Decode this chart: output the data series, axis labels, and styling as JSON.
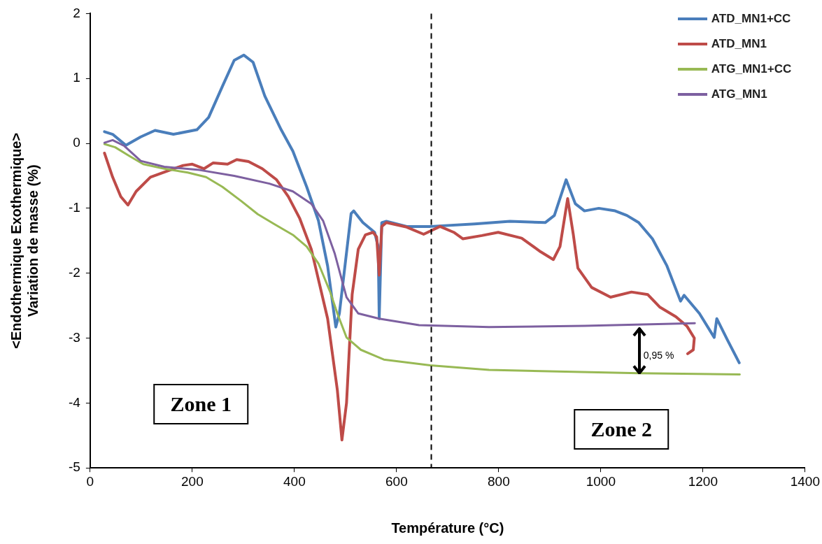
{
  "chart_data": {
    "type": "line",
    "xlabel": "Température (°C)",
    "ylabel": "<Endothermique Exothermique>\nVariation de masse (%)",
    "xlim": [
      0,
      1400
    ],
    "xticks": [
      0,
      200,
      400,
      600,
      800,
      1000,
      1200,
      1400
    ],
    "ylim": [
      -5,
      2
    ],
    "yticks": [
      -5,
      -4,
      -3,
      -2,
      -1,
      0,
      1,
      2
    ],
    "grid": false,
    "legend": "top right",
    "marker": "none",
    "line_style": "solid",
    "series": [
      {
        "name": "ATD_MN1+CC",
        "color": "#4a7ebb",
        "x": [
          28,
          44,
          70,
          99,
          127,
          163,
          209,
          232,
          259,
          282,
          301,
          319,
          342,
          374,
          397,
          424,
          447,
          465,
          481,
          488,
          511,
          516,
          534,
          557,
          564,
          566,
          571,
          580,
          620,
          666,
          753,
          822,
          891,
          909,
          932,
          950,
          968,
          996,
          1028,
          1051,
          1074,
          1101,
          1129,
          1156,
          1163,
          1193,
          1222,
          1227,
          1248,
          1271
        ],
        "values": [
          0.18,
          0.14,
          -0.03,
          0.1,
          0.2,
          0.14,
          0.21,
          0.4,
          0.88,
          1.28,
          1.36,
          1.25,
          0.73,
          0.21,
          -0.12,
          -0.67,
          -1.19,
          -1.89,
          -2.83,
          -2.62,
          -1.08,
          -1.04,
          -1.22,
          -1.37,
          -1.59,
          -2.7,
          -1.22,
          -1.2,
          -1.28,
          -1.28,
          -1.24,
          -1.2,
          -1.22,
          -1.11,
          -0.56,
          -0.93,
          -1.04,
          -1,
          -1.04,
          -1.11,
          -1.22,
          -1.47,
          -1.88,
          -2.43,
          -2.34,
          -2.62,
          -2.99,
          -2.7,
          -3.03,
          -3.38
        ]
      },
      {
        "name": "ATD_MN1",
        "color": "#be4b48",
        "x": [
          28,
          44,
          60,
          74,
          90,
          118,
          150,
          182,
          200,
          223,
          241,
          269,
          287,
          310,
          337,
          365,
          388,
          410,
          433,
          465,
          484,
          493,
          502,
          513,
          525,
          539,
          554,
          561,
          566,
          571,
          580,
          620,
          653,
          685,
          712,
          730,
          767,
          799,
          845,
          882,
          907,
          920,
          935,
          946,
          955,
          982,
          1019,
          1060,
          1092,
          1115,
          1147,
          1169,
          1183,
          1181,
          1170
        ],
        "values": [
          -0.15,
          -0.52,
          -0.82,
          -0.95,
          -0.74,
          -0.52,
          -0.43,
          -0.34,
          -0.32,
          -0.39,
          -0.3,
          -0.32,
          -0.25,
          -0.28,
          -0.39,
          -0.56,
          -0.82,
          -1.15,
          -1.63,
          -2.7,
          -3.8,
          -4.57,
          -4,
          -2.33,
          -1.63,
          -1.41,
          -1.37,
          -1.44,
          -2.03,
          -1.28,
          -1.22,
          -1.29,
          -1.4,
          -1.28,
          -1.37,
          -1.47,
          -1.42,
          -1.37,
          -1.46,
          -1.67,
          -1.79,
          -1.59,
          -0.85,
          -1.4,
          -1.92,
          -2.22,
          -2.37,
          -2.29,
          -2.33,
          -2.52,
          -2.67,
          -2.82,
          -3,
          -3.18,
          -3.24
        ]
      },
      {
        "name": "ATG_MN1+CC",
        "color": "#98b954",
        "x": [
          28,
          49,
          76,
          104,
          145,
          191,
          227,
          259,
          296,
          328,
          360,
          397,
          424,
          447,
          470,
          484,
          502,
          530,
          575,
          666,
          781,
          1074,
          1272
        ],
        "values": [
          -0.01,
          -0.06,
          -0.19,
          -0.32,
          -0.39,
          -0.45,
          -0.52,
          -0.67,
          -0.89,
          -1.09,
          -1.24,
          -1.41,
          -1.59,
          -1.85,
          -2.29,
          -2.62,
          -2.99,
          -3.18,
          -3.33,
          -3.42,
          -3.49,
          -3.54,
          -3.56
        ]
      },
      {
        "name": "ATG_MN1",
        "color": "#7d60a0",
        "x": [
          28,
          44,
          67,
          99,
          145,
          214,
          282,
          351,
          397,
          433,
          456,
          479,
          502,
          525,
          566,
          644,
          781,
          968,
          1184
        ],
        "values": [
          0.01,
          0.05,
          -0.04,
          -0.27,
          -0.36,
          -0.41,
          -0.5,
          -0.62,
          -0.74,
          -0.93,
          -1.19,
          -1.7,
          -2.37,
          -2.62,
          -2.7,
          -2.8,
          -2.83,
          -2.81,
          -2.77
        ]
      }
    ],
    "ref_lines": [
      {
        "axis": "x",
        "value": 668,
        "color": "#000000",
        "line_style": "dashed"
      }
    ],
    "annotations": [
      "Zone 1",
      "Zone 2",
      "0,95 %"
    ]
  }
}
